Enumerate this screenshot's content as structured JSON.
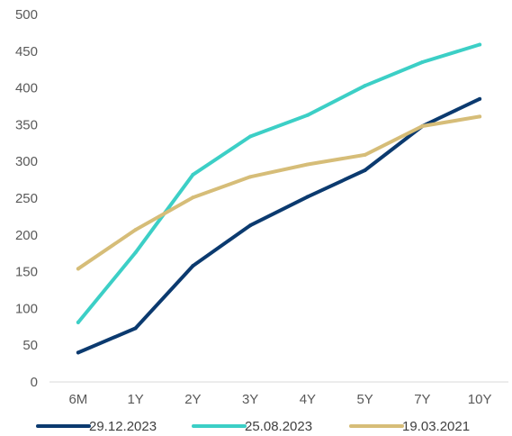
{
  "chart_data": {
    "type": "line",
    "title": "",
    "xlabel": "",
    "ylabel": "",
    "categories": [
      "6M",
      "1Y",
      "2Y",
      "3Y",
      "4Y",
      "5Y",
      "7Y",
      "10Y"
    ],
    "ylim": [
      0,
      500
    ],
    "yticks": [
      "0",
      "50",
      "100",
      "150",
      "200",
      "250",
      "300",
      "350",
      "400",
      "450",
      "500"
    ],
    "grid": false,
    "legend_position": "bottom",
    "series": [
      {
        "name": "29.12.2023",
        "color": "#0b3a6f",
        "values": [
          40,
          73,
          158,
          213,
          252,
          288,
          348,
          385
        ]
      },
      {
        "name": "25.08.2023",
        "color": "#3ccfc6",
        "values": [
          81,
          176,
          282,
          334,
          363,
          403,
          435,
          459
        ]
      },
      {
        "name": "19.03.2021",
        "color": "#d6bd78",
        "values": [
          154,
          207,
          251,
          279,
          296,
          309,
          348,
          361
        ]
      }
    ]
  }
}
